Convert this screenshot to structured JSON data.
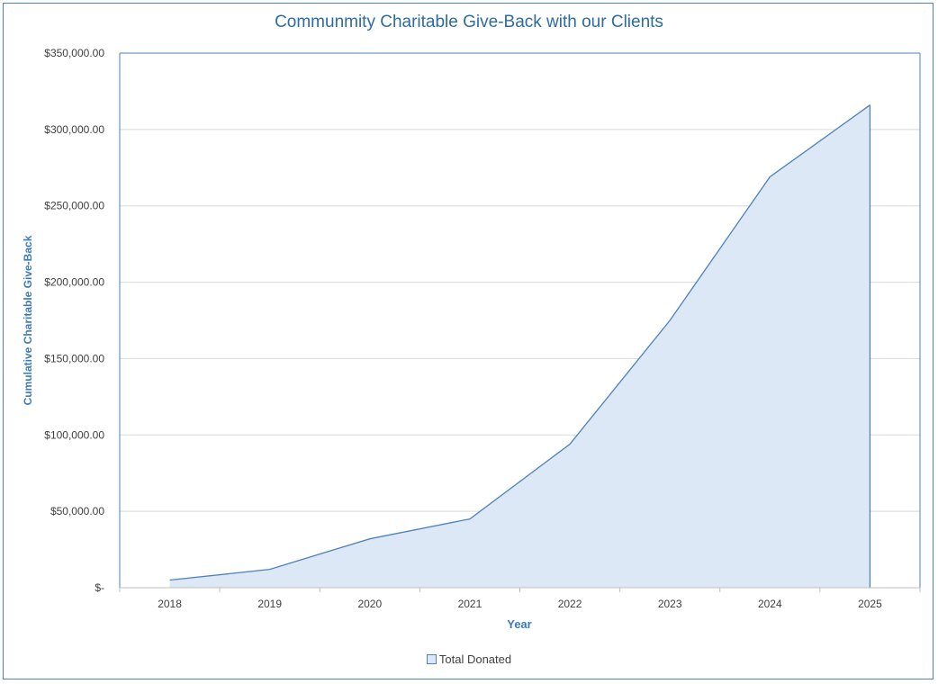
{
  "chart_data": {
    "type": "area",
    "title": "Communmity Charitable Give-Back with our Clients",
    "xlabel": "Year",
    "ylabel": "Cumulative Charitable Give-Back",
    "categories": [
      "2018",
      "2019",
      "2020",
      "2021",
      "2022",
      "2023",
      "2024",
      "2025"
    ],
    "series": [
      {
        "name": "Total Donated",
        "values": [
          5000,
          12000,
          32000,
          45000,
          94000,
          175000,
          269000,
          316000
        ]
      }
    ],
    "ylim": [
      0,
      350000
    ],
    "y_ticks": [
      0,
      50000,
      100000,
      150000,
      200000,
      250000,
      300000,
      350000
    ],
    "y_tick_labels": [
      "$-",
      "$50,000.00",
      "$100,000.00",
      "$150,000.00",
      "$200,000.00",
      "$250,000.00",
      "$300,000.00",
      "$350,000.00"
    ],
    "grid": true,
    "legend_position": "bottom",
    "colors": {
      "line": "#4f81bd",
      "fill": "#dce8f5",
      "grid": "#d9d9d9",
      "text": "#404040",
      "accent": "#2e6b9e"
    }
  }
}
